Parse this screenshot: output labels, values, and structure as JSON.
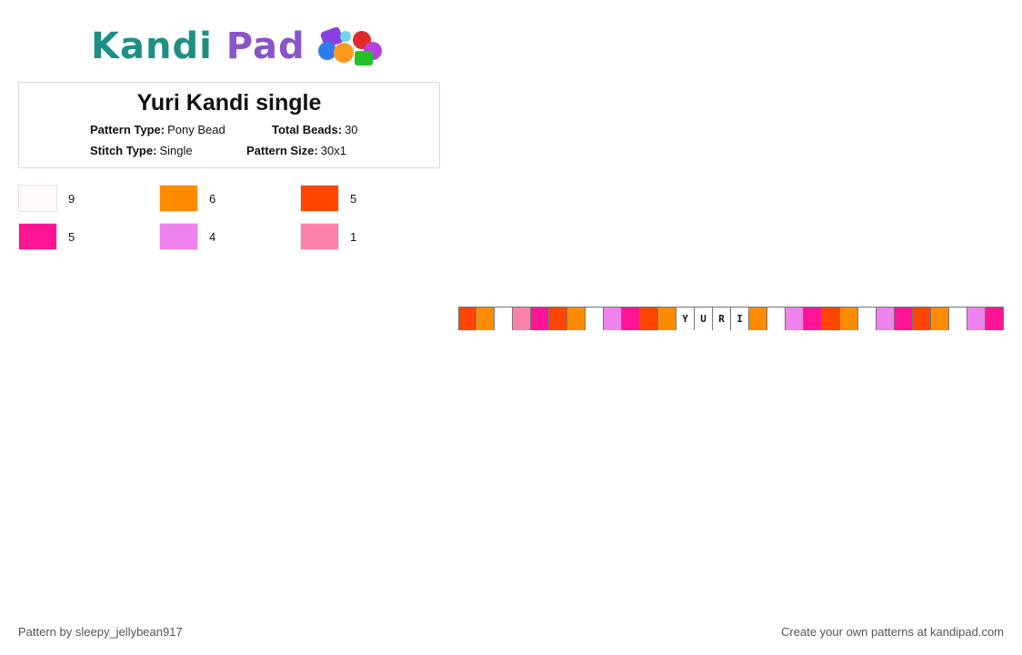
{
  "logo": {
    "text_part1": "Kandi",
    "text_part2": "Pad"
  },
  "pattern": {
    "title": "Yuri Kandi single",
    "type_label": "Pattern Type:",
    "type_value": "Pony Bead",
    "beads_label": "Total Beads:",
    "beads_value": "30",
    "stitch_label": "Stitch Type:",
    "stitch_value": "Single",
    "size_label": "Pattern Size:",
    "size_value": "30x1"
  },
  "palette": [
    {
      "color": "#fffafa",
      "count": "9"
    },
    {
      "color": "#ff8c00",
      "count": "6"
    },
    {
      "color": "#ff4500",
      "count": "5"
    },
    {
      "color": "#ff1493",
      "count": "5"
    },
    {
      "color": "#ee82ee",
      "count": "4"
    },
    {
      "color": "#ff80ab",
      "count": "1"
    }
  ],
  "beads": [
    {
      "color": "#ff4500",
      "letter": ""
    },
    {
      "color": "#ff8c00",
      "letter": ""
    },
    {
      "color": "#ffffff",
      "letter": ""
    },
    {
      "color": "#ff80ab",
      "letter": ""
    },
    {
      "color": "#ff1493",
      "letter": ""
    },
    {
      "color": "#ff4500",
      "letter": ""
    },
    {
      "color": "#ff8c00",
      "letter": ""
    },
    {
      "color": "#ffffff",
      "letter": ""
    },
    {
      "color": "#ee82ee",
      "letter": ""
    },
    {
      "color": "#ff1493",
      "letter": ""
    },
    {
      "color": "#ff4500",
      "letter": ""
    },
    {
      "color": "#ff8c00",
      "letter": ""
    },
    {
      "color": "#ffffff",
      "letter": "Y"
    },
    {
      "color": "#ffffff",
      "letter": "U"
    },
    {
      "color": "#ffffff",
      "letter": "R"
    },
    {
      "color": "#ffffff",
      "letter": "I"
    },
    {
      "color": "#ff8c00",
      "letter": ""
    },
    {
      "color": "#ffffff",
      "letter": ""
    },
    {
      "color": "#ee82ee",
      "letter": ""
    },
    {
      "color": "#ff1493",
      "letter": ""
    },
    {
      "color": "#ff4500",
      "letter": ""
    },
    {
      "color": "#ff8c00",
      "letter": ""
    },
    {
      "color": "#ffffff",
      "letter": ""
    },
    {
      "color": "#ee82ee",
      "letter": ""
    },
    {
      "color": "#ff1493",
      "letter": ""
    },
    {
      "color": "#ff4500",
      "letter": ""
    },
    {
      "color": "#ff8c00",
      "letter": ""
    },
    {
      "color": "#ffffff",
      "letter": ""
    },
    {
      "color": "#ee82ee",
      "letter": ""
    },
    {
      "color": "#ff1493",
      "letter": ""
    }
  ],
  "footer": {
    "author": "Pattern by sleepy_jellybean917",
    "promo": "Create your own patterns at kandipad.com"
  }
}
